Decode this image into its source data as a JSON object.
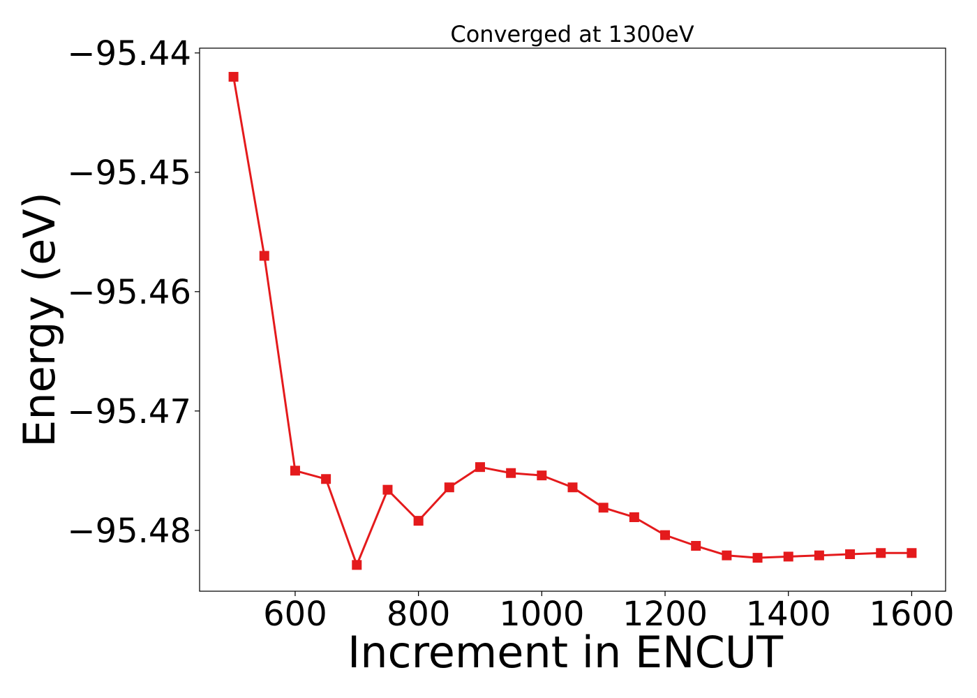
{
  "chart_data": {
    "type": "line",
    "title": "Converged at 1300eV",
    "xlabel": "Increment in ENCUT",
    "ylabel": "Energy (eV)",
    "xlim": [
      445,
      1655
    ],
    "ylim": [
      -95.4851,
      -95.4396
    ],
    "xticks": [
      600,
      800,
      1000,
      1200,
      1400,
      1600
    ],
    "xtick_labels": [
      "600",
      "800",
      "1000",
      "1200",
      "1400",
      "1600"
    ],
    "yticks": [
      -95.44,
      -95.45,
      -95.46,
      -95.47,
      -95.48
    ],
    "ytick_labels": [
      "−95.44",
      "−95.45",
      "−95.46",
      "−95.47",
      "−95.48"
    ],
    "grid": false,
    "series": [
      {
        "color": "#e41a1c",
        "marker": "square",
        "x": [
          500,
          550,
          600,
          650,
          700,
          750,
          800,
          850,
          900,
          950,
          1000,
          1050,
          1100,
          1150,
          1200,
          1250,
          1300,
          1350,
          1400,
          1450,
          1500,
          1550,
          1600
        ],
        "y": [
          -95.442,
          -95.457,
          -95.475,
          -95.4757,
          -95.4829,
          -95.4766,
          -95.4792,
          -95.4764,
          -95.4747,
          -95.4752,
          -95.4754,
          -95.4764,
          -95.4781,
          -95.4789,
          -95.4804,
          -95.4813,
          -95.4821,
          -95.4823,
          -95.4822,
          -95.4821,
          -95.482,
          -95.4819,
          -95.4819
        ]
      }
    ]
  }
}
